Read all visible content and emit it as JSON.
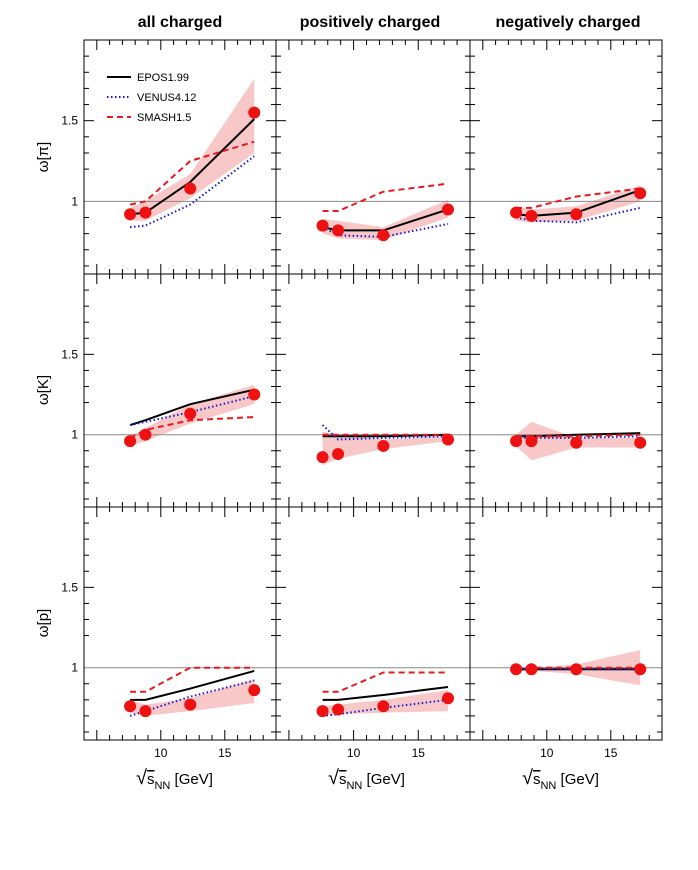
{
  "columns": [
    {
      "title": "all charged"
    },
    {
      "title": "positively charged"
    },
    {
      "title": "negatively charged"
    }
  ],
  "rows": [
    {
      "ylabel": "ω[π]"
    },
    {
      "ylabel": "ω[K]"
    },
    {
      "ylabel": "ω[p]"
    }
  ],
  "xlabel": {
    "sqrt": "√",
    "s": "s",
    "sub": "NN",
    "unit": " [GeV]"
  },
  "legend": [
    {
      "name": "EPOS1.99",
      "color": "#000000",
      "style": "solid"
    },
    {
      "name": "VENUS4.12",
      "color": "#1a1acc",
      "style": "dotted"
    },
    {
      "name": "SMASH1.5",
      "color": "#e8191f",
      "style": "dashed"
    }
  ],
  "colors": {
    "data": "#ee1111",
    "band": "#f4a3a3",
    "reference": "#888888"
  },
  "chart_data": {
    "type": "line",
    "xlim": [
      4,
      19
    ],
    "ylim": [
      0.55,
      2.0
    ],
    "xticks": [
      10,
      15
    ],
    "yticks": [
      1,
      1.5
    ],
    "reference_line": 1,
    "panels": [
      {
        "column": "all charged",
        "row": "ω[π]",
        "x": [
          7.6,
          8.8,
          12.3,
          17.3
        ],
        "series": [
          {
            "name": "EPOS1.99",
            "values": [
              0.92,
              0.93,
              1.12,
              1.51
            ]
          },
          {
            "name": "VENUS4.12",
            "values": [
              0.84,
              0.85,
              0.98,
              1.28
            ]
          },
          {
            "name": "SMASH1.5",
            "values": [
              0.98,
              1.0,
              1.25,
              1.37
            ]
          }
        ],
        "data": [
          0.92,
          0.93,
          1.08,
          1.55
        ],
        "band_low": [
          0.88,
          0.88,
          1.02,
          1.3
        ],
        "band_high": [
          0.96,
          1.0,
          1.17,
          1.76
        ]
      },
      {
        "column": "positively charged",
        "row": "ω[π]",
        "x": [
          7.6,
          8.8,
          12.3,
          17.3
        ],
        "series": [
          {
            "name": "EPOS1.99",
            "values": [
              0.84,
              0.82,
              0.82,
              0.95
            ]
          },
          {
            "name": "VENUS4.12",
            "values": [
              0.84,
              0.79,
              0.78,
              0.86
            ]
          },
          {
            "name": "SMASH1.5",
            "values": [
              0.94,
              0.94,
              1.06,
              1.11
            ]
          }
        ],
        "data": [
          0.85,
          0.82,
          0.79,
          0.95
        ],
        "band_low": [
          0.8,
          0.77,
          0.76,
          0.9
        ],
        "band_high": [
          0.89,
          0.88,
          0.84,
          1.01
        ]
      },
      {
        "column": "negatively charged",
        "row": "ω[π]",
        "x": [
          7.6,
          8.8,
          12.3,
          17.3
        ],
        "series": [
          {
            "name": "EPOS1.99",
            "values": [
              0.92,
              0.91,
              0.93,
              1.07
            ]
          },
          {
            "name": "VENUS4.12",
            "values": [
              0.9,
              0.88,
              0.87,
              0.96
            ]
          },
          {
            "name": "SMASH1.5",
            "values": [
              0.96,
              0.96,
              1.03,
              1.08
            ]
          }
        ],
        "data": [
          0.93,
          0.91,
          0.92,
          1.05
        ],
        "band_low": [
          0.88,
          0.87,
          0.88,
          1.0
        ],
        "band_high": [
          0.97,
          0.95,
          0.97,
          1.1
        ]
      },
      {
        "column": "all charged",
        "row": "ω[K]",
        "x": [
          7.6,
          8.8,
          12.3,
          17.3
        ],
        "series": [
          {
            "name": "EPOS1.99",
            "values": [
              1.06,
              1.09,
              1.19,
              1.28
            ]
          },
          {
            "name": "VENUS4.12",
            "values": [
              1.06,
              1.08,
              1.14,
              1.24
            ]
          },
          {
            "name": "SMASH1.5",
            "values": [
              0.98,
              1.03,
              1.09,
              1.11
            ]
          }
        ],
        "data": [
          0.96,
          1.0,
          1.13,
          1.25
        ],
        "band_low": [
          0.93,
          0.96,
          1.07,
          1.19
        ],
        "band_high": [
          0.99,
          1.04,
          1.19,
          1.31
        ]
      },
      {
        "column": "positively charged",
        "row": "ω[K]",
        "x": [
          7.6,
          8.8,
          12.3,
          17.3
        ],
        "series": [
          {
            "name": "EPOS1.99",
            "values": [
              0.99,
              0.99,
              0.99,
              1.0
            ]
          },
          {
            "name": "VENUS4.12",
            "values": [
              1.06,
              0.97,
              0.98,
              0.99
            ]
          },
          {
            "name": "SMASH1.5",
            "values": [
              1.0,
              1.0,
              1.0,
              1.0
            ]
          }
        ],
        "data": [
          0.86,
          0.88,
          0.93,
          0.97
        ],
        "band_low": [
          0.81,
          0.85,
          0.91,
          0.96
        ],
        "band_high": [
          1.02,
          1.0,
          0.97,
          0.99
        ]
      },
      {
        "column": "negatively charged",
        "row": "ω[K]",
        "x": [
          7.6,
          8.8,
          12.3,
          17.3
        ],
        "series": [
          {
            "name": "EPOS1.99",
            "values": [
              0.99,
              0.99,
              1.0,
              1.01
            ]
          },
          {
            "name": "VENUS4.12",
            "values": [
              0.98,
              0.98,
              0.98,
              0.99
            ]
          },
          {
            "name": "SMASH1.5",
            "values": [
              0.99,
              0.99,
              0.99,
              1.0
            ]
          }
        ],
        "data": [
          0.96,
          0.96,
          0.95,
          0.95
        ],
        "band_low": [
          0.93,
          0.84,
          0.92,
          0.92
        ],
        "band_high": [
          1.0,
          1.08,
          0.98,
          0.98
        ]
      },
      {
        "column": "all charged",
        "row": "ω[p]",
        "x": [
          7.6,
          8.8,
          12.3,
          17.3
        ],
        "series": [
          {
            "name": "EPOS1.99",
            "values": [
              0.8,
              0.8,
              0.87,
              0.98
            ]
          },
          {
            "name": "VENUS4.12",
            "values": [
              0.7,
              0.73,
              0.82,
              0.92
            ]
          },
          {
            "name": "SMASH1.5",
            "values": [
              0.85,
              0.85,
              1.0,
              1.0
            ]
          }
        ],
        "data": [
          0.76,
          0.73,
          0.77,
          0.86
        ],
        "band_low": [
          0.72,
          0.7,
          0.73,
          0.78
        ],
        "band_high": [
          0.8,
          0.77,
          0.81,
          0.93
        ]
      },
      {
        "column": "positively charged",
        "row": "ω[p]",
        "x": [
          7.6,
          8.8,
          12.3,
          17.3
        ],
        "series": [
          {
            "name": "EPOS1.99",
            "values": [
              0.8,
              0.8,
              0.83,
              0.88
            ]
          },
          {
            "name": "VENUS4.12",
            "values": [
              0.7,
              0.71,
              0.75,
              0.8
            ]
          },
          {
            "name": "SMASH1.5",
            "values": [
              0.85,
              0.85,
              0.97,
              0.97
            ]
          }
        ],
        "data": [
          0.73,
          0.74,
          0.76,
          0.81
        ],
        "band_low": [
          0.7,
          0.71,
          0.72,
          0.73
        ],
        "band_high": [
          0.76,
          0.77,
          0.8,
          0.86
        ]
      },
      {
        "column": "negatively charged",
        "row": "ω[p]",
        "x": [
          7.6,
          8.8,
          12.3,
          17.3
        ],
        "series": [
          {
            "name": "EPOS1.99",
            "values": [
              0.99,
              0.99,
              0.99,
              0.99
            ]
          },
          {
            "name": "VENUS4.12",
            "values": [
              0.99,
              0.99,
              0.99,
              0.99
            ]
          },
          {
            "name": "SMASH1.5",
            "values": [
              1.0,
              1.0,
              1.0,
              1.0
            ]
          }
        ],
        "data": [
          0.99,
          0.99,
          0.99,
          0.99
        ],
        "band_low": [
          0.98,
          0.98,
          0.96,
          0.89
        ],
        "band_high": [
          1.0,
          1.0,
          1.02,
          1.11
        ]
      }
    ]
  }
}
